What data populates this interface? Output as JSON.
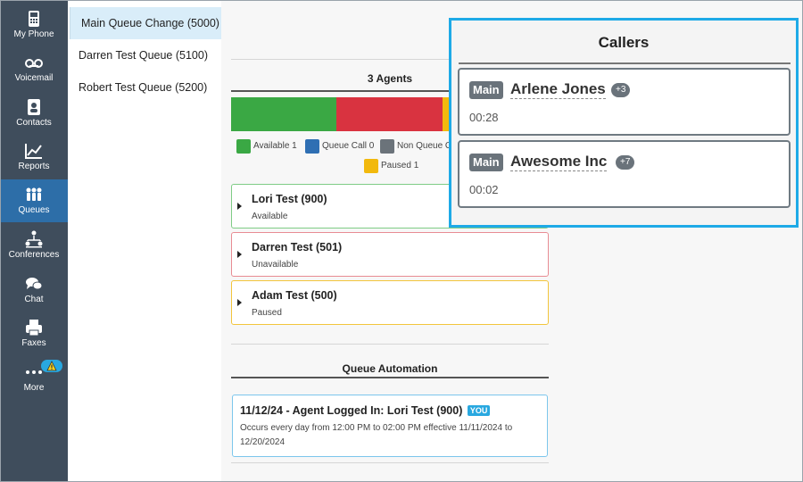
{
  "nav": {
    "items": [
      {
        "label": "My Phone",
        "icon": "phone-icon"
      },
      {
        "label": "Voicemail",
        "icon": "voicemail-icon"
      },
      {
        "label": "Contacts",
        "icon": "contacts-icon"
      },
      {
        "label": "Reports",
        "icon": "reports-icon"
      },
      {
        "label": "Queues",
        "icon": "queues-icon",
        "active": true
      },
      {
        "label": "Conferences",
        "icon": "conferences-icon"
      },
      {
        "label": "Chat",
        "icon": "chat-icon"
      },
      {
        "label": "Faxes",
        "icon": "fax-icon"
      },
      {
        "label": "More",
        "icon": "more-icon",
        "badge": "warning-icon"
      }
    ]
  },
  "queues": {
    "items": [
      {
        "label": "Main Queue Change (5000)",
        "selected": true
      },
      {
        "label": "Darren Test Queue (5100)"
      },
      {
        "label": "Robert Test Queue (5200)"
      }
    ]
  },
  "agents_section": {
    "title": "3 Agents",
    "status_bar": [
      {
        "status": "Available",
        "count": 1,
        "color": "#3aa844"
      },
      {
        "status": "Unavailable",
        "count": 1,
        "color": "#d93340"
      },
      {
        "status": "Paused",
        "count": 1,
        "color": "#f2b90d"
      }
    ],
    "legend": [
      {
        "label": "Available 1",
        "color": "#3aa844"
      },
      {
        "label": "Queue Call 0",
        "color": "#2f6fb3"
      },
      {
        "label": "Non Queue C",
        "color": "#6b737a"
      },
      {
        "label": "Paused 1",
        "color": "#f2b90d"
      }
    ],
    "agents": [
      {
        "name": "Lori Test (900)",
        "status": "Available",
        "border": "#7fcc86"
      },
      {
        "name": "Darren Test (501)",
        "status": "Unavailable",
        "border": "#e88c93"
      },
      {
        "name": "Adam Test (500)",
        "status": "Paused",
        "border": "#f2c53c"
      }
    ]
  },
  "automation": {
    "title": "Queue Automation",
    "entry": {
      "title": "11/12/24 - Agent Logged In: Lori Test (900)",
      "badge": "YOU",
      "description": "Occurs every day from 12:00 PM to 02:00 PM effective 11/11/2024 to 12/20/2024"
    }
  },
  "callers": {
    "title": "Callers",
    "items": [
      {
        "tag": "Main",
        "name": "Arlene Jones",
        "count": "+3",
        "time": "00:28"
      },
      {
        "tag": "Main",
        "name": "Awesome Inc",
        "count": "+7",
        "time": "00:02"
      }
    ]
  }
}
